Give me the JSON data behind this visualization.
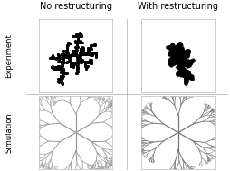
{
  "title_left": "No restructuring",
  "title_right": "With restructuring",
  "row_label_top": "Experiment",
  "row_label_bottom": "Simulation",
  "background_color": "#ffffff",
  "border_color": "#000000",
  "text_color": "#000000",
  "figure_width": 2.54,
  "figure_height": 1.89,
  "dpi": 100,
  "title_fontsize": 7.0,
  "label_fontsize": 6.0
}
